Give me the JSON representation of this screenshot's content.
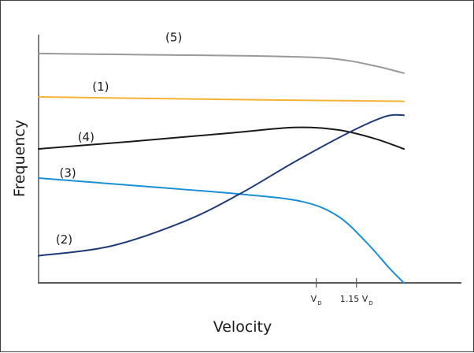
{
  "chart_data": {
    "type": "line",
    "title": "",
    "xlabel": "Velocity",
    "ylabel": "Frequency",
    "xlim": [
      0,
      1
    ],
    "ylim": [
      0,
      1
    ],
    "grid": false,
    "legend": "none (inline labels)",
    "x_ticks": [
      {
        "value": 0.76,
        "label": "V",
        "subscript": "D"
      },
      {
        "value": 0.87,
        "label": "1.15 V",
        "subscript": "D"
      }
    ],
    "series": [
      {
        "name": "(5)",
        "color": "#999999",
        "label_at": [
          0.37,
          0.98
        ],
        "points": [
          [
            0,
            0.93
          ],
          [
            0.3,
            0.925
          ],
          [
            0.6,
            0.92
          ],
          [
            0.8,
            0.91
          ],
          [
            0.92,
            0.88
          ],
          [
            1.0,
            0.85
          ]
        ]
      },
      {
        "name": "(1)",
        "color": "#f5b335",
        "label_at": [
          0.17,
          0.78
        ],
        "points": [
          [
            0,
            0.754
          ],
          [
            0.5,
            0.744
          ],
          [
            1.0,
            0.736
          ]
        ]
      },
      {
        "name": "(4)",
        "color": "#1a1a1a",
        "label_at": [
          0.13,
          0.575
        ],
        "points": [
          [
            0,
            0.543
          ],
          [
            0.25,
            0.573
          ],
          [
            0.52,
            0.607
          ],
          [
            0.7,
            0.63
          ],
          [
            0.82,
            0.62
          ],
          [
            0.92,
            0.585
          ],
          [
            1.0,
            0.543
          ]
        ]
      },
      {
        "name": "(3)",
        "color": "#1a8fd6",
        "label_at": [
          0.08,
          0.43
        ],
        "points": [
          [
            0,
            0.425
          ],
          [
            0.3,
            0.39
          ],
          [
            0.55,
            0.36
          ],
          [
            0.72,
            0.33
          ],
          [
            0.82,
            0.27
          ],
          [
            0.9,
            0.16
          ],
          [
            0.96,
            0.06
          ],
          [
            1.0,
            0.0
          ]
        ]
      },
      {
        "name": "(2)",
        "color": "#1f3a78",
        "label_at": [
          0.07,
          0.16
        ],
        "points": [
          [
            0,
            0.11
          ],
          [
            0.2,
            0.15
          ],
          [
            0.4,
            0.25
          ],
          [
            0.55,
            0.36
          ],
          [
            0.7,
            0.49
          ],
          [
            0.85,
            0.61
          ],
          [
            0.95,
            0.675
          ],
          [
            1.0,
            0.68
          ]
        ]
      }
    ]
  }
}
